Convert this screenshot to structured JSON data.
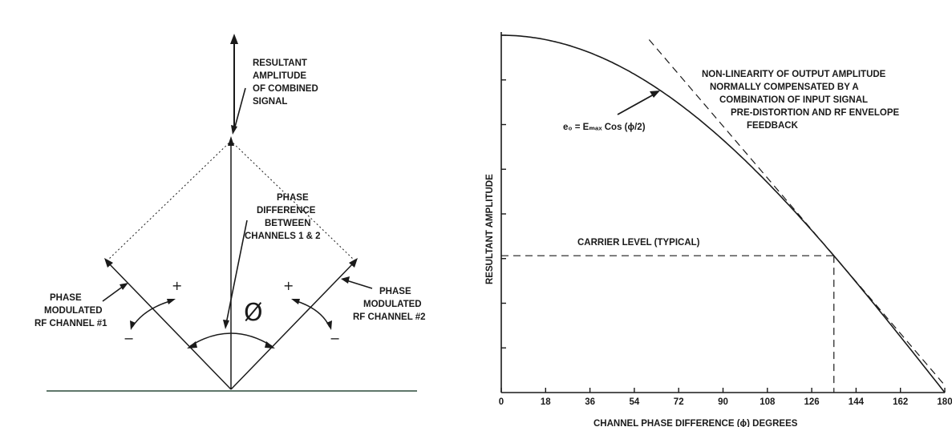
{
  "left_diagram": {
    "resultant_lines": [
      "RESULTANT",
      "AMPLITUDE",
      "OF COMBINED",
      "SIGNAL"
    ],
    "phase_diff_lines": [
      "PHASE",
      "DIFFERENCE",
      "BETWEEN",
      "CHANNELS 1 & 2"
    ],
    "ch1_lines": [
      "PHASE",
      "MODULATED",
      "RF CHANNEL #1"
    ],
    "ch2_lines": [
      "PHASE",
      "MODULATED",
      "RF CHANNEL #2"
    ],
    "phi_symbol": "Ø",
    "plus": "+",
    "minus": "−"
  },
  "right_chart": {
    "annotation_lines": [
      "NON-LINEARITY OF OUTPUT AMPLITUDE",
      "NORMALLY COMPENSATED BY A",
      "COMBINATION OF INPUT SIGNAL",
      "PRE-DISTORTION AND RF ENVELOPE",
      "FEEDBACK"
    ],
    "formula": "e₀ = Eₘₐₓ Cos (ϕ/2)",
    "carrier_label": "CARRIER LEVEL (TYPICAL)"
  },
  "chart_data": {
    "type": "line",
    "xlabel": "CHANNEL PHASE DIFFERENCE (ϕ) DEGREES",
    "ylabel": "RESULTANT AMPLITUDE",
    "xlim": [
      0,
      180
    ],
    "x_ticks": [
      0,
      18,
      36,
      54,
      72,
      90,
      108,
      126,
      144,
      162,
      180
    ],
    "y_tick_count": 8,
    "ylim": [
      0,
      1
    ],
    "series": [
      {
        "function": "cos(phi/2)",
        "style": "solid"
      },
      {
        "style": "dashed",
        "note": "linear tangent"
      }
    ],
    "carrier_level": {
      "x": 135,
      "y": 0.383
    }
  }
}
